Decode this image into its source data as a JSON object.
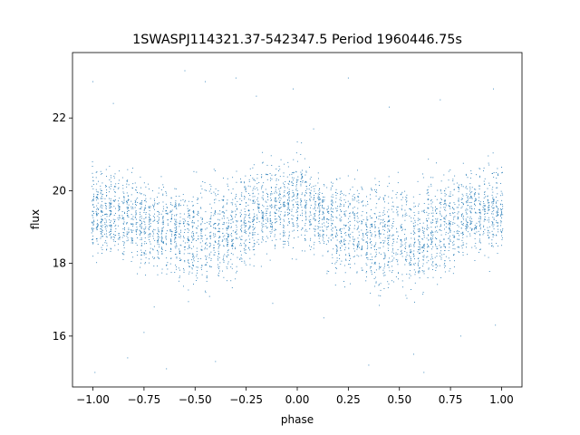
{
  "chart_data": {
    "type": "scatter",
    "title": "1SWASPJ114321.37-542347.5 Period 1960446.75s",
    "xlabel": "phase",
    "ylabel": "flux",
    "xlim": [
      -1.1,
      1.1
    ],
    "ylim": [
      14.6,
      23.8
    ],
    "xticks": [
      -1.0,
      -0.75,
      -0.5,
      -0.25,
      0.0,
      0.25,
      0.5,
      0.75,
      1.0
    ],
    "xtick_labels": [
      "−1.00",
      "−0.75",
      "−0.50",
      "−0.25",
      "0.00",
      "0.25",
      "0.50",
      "0.75",
      "1.00"
    ],
    "yticks": [
      16,
      18,
      20,
      22
    ],
    "ytick_labels": [
      "16",
      "18",
      "20",
      "22"
    ],
    "grid": false,
    "point_color": "#1f77b4",
    "series": [
      {
        "phase": [
          -1.0,
          -0.95,
          -0.9,
          -0.85,
          -0.8,
          -0.75,
          -0.7,
          -0.65,
          -0.6,
          -0.55,
          -0.5,
          -0.45,
          -0.4,
          -0.35,
          -0.3,
          -0.25,
          -0.2,
          -0.15,
          -0.1,
          -0.05,
          0.0,
          0.05,
          0.1,
          0.15,
          0.2,
          0.25,
          0.3,
          0.35,
          0.4,
          0.45,
          0.5,
          0.55,
          0.6,
          0.65,
          0.7,
          0.75,
          0.8,
          0.85,
          0.9,
          0.95,
          1.0
        ],
        "flux_center": [
          19.5,
          19.4,
          19.5,
          19.2,
          19.3,
          19.0,
          19.1,
          18.9,
          19.0,
          18.7,
          18.8,
          18.6,
          18.9,
          18.8,
          19.1,
          19.3,
          19.4,
          19.5,
          19.6,
          19.6,
          19.7,
          19.6,
          19.3,
          19.2,
          19.0,
          18.9,
          19.0,
          18.8,
          18.7,
          18.6,
          18.8,
          18.7,
          18.6,
          18.9,
          19.0,
          19.2,
          19.3,
          19.4,
          19.4,
          19.5,
          19.5
        ],
        "flux_spread": [
          1.3,
          1.3,
          1.2,
          1.2,
          1.3,
          1.3,
          1.4,
          1.4,
          1.4,
          1.5,
          1.6,
          1.7,
          1.6,
          1.5,
          1.4,
          1.4,
          1.3,
          1.3,
          1.3,
          1.3,
          1.4,
          1.4,
          1.3,
          1.3,
          1.4,
          1.4,
          1.5,
          1.6,
          1.7,
          1.7,
          1.6,
          1.7,
          1.7,
          1.6,
          1.5,
          1.4,
          1.3,
          1.3,
          1.3,
          1.3,
          1.3
        ]
      }
    ],
    "outliers": [
      [
        -1.0,
        23.0
      ],
      [
        -0.9,
        22.4
      ],
      [
        -0.83,
        15.4
      ],
      [
        -0.75,
        16.1
      ],
      [
        -0.7,
        16.8
      ],
      [
        -0.64,
        15.1
      ],
      [
        -0.55,
        23.3
      ],
      [
        -0.45,
        23.0
      ],
      [
        -0.4,
        15.3
      ],
      [
        -0.3,
        23.1
      ],
      [
        -0.2,
        22.6
      ],
      [
        -0.02,
        22.8
      ],
      [
        0.08,
        21.7
      ],
      [
        0.25,
        23.1
      ],
      [
        0.35,
        15.2
      ],
      [
        0.45,
        22.3
      ],
      [
        0.57,
        15.5
      ],
      [
        0.62,
        15.0
      ],
      [
        0.7,
        22.5
      ],
      [
        0.96,
        22.8
      ],
      [
        0.97,
        16.3
      ],
      [
        -0.99,
        15.0
      ],
      [
        0.13,
        16.5
      ],
      [
        -0.12,
        16.9
      ],
      [
        0.8,
        16.0
      ]
    ]
  }
}
